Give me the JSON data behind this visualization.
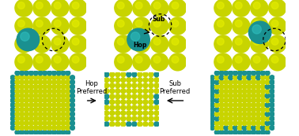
{
  "yellow_color": "#c8d400",
  "yellow_light": "#e8f000",
  "yellow_bg": "#a8b400",
  "teal_color": "#1a9090",
  "teal_light": "#30c0c0",
  "bg_color": "#ffffff",
  "hop_label": "Hop\nPreferred",
  "sub_label": "Sub\nPreferred",
  "figsize": [
    3.78,
    1.73
  ],
  "dpi": 100
}
